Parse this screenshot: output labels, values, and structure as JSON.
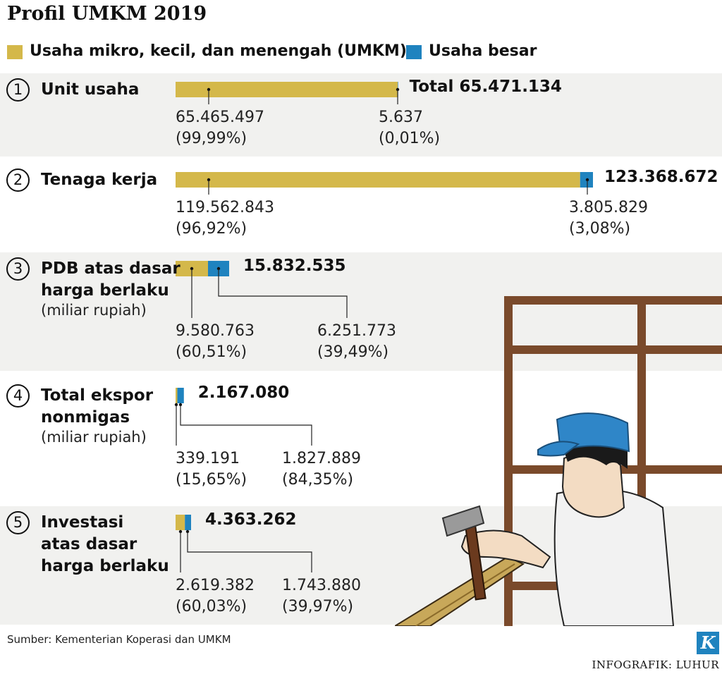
{
  "title": "Profil UMKM 2019",
  "legend": [
    {
      "label": "Usaha mikro, kecil, dan menengah (UMKM)",
      "color": "#d4b84a"
    },
    {
      "label": "Usaha besar",
      "color": "#1f83bf"
    }
  ],
  "chart_data": {
    "type": "bar",
    "orientation": "horizontal-stacked",
    "series": [
      {
        "name": "Usaha mikro, kecil, dan menengah (UMKM)",
        "color": "#d4b84a"
      },
      {
        "name": "Usaha besar",
        "color": "#1f83bf"
      }
    ],
    "rows": [
      {
        "num": "1",
        "label": [
          "Unit usaha"
        ],
        "sub": [],
        "total_text": "Total 65.471.134",
        "total": 65471134,
        "values": [
          65465497,
          5637
        ],
        "value_texts": [
          "65.465.497",
          "5.637"
        ],
        "pct_texts": [
          "(99,99%)",
          "(0,01%)"
        ]
      },
      {
        "num": "2",
        "label": [
          "Tenaga kerja"
        ],
        "sub": [],
        "total_text": "123.368.672",
        "total": 123368672,
        "values": [
          119562843,
          3805829
        ],
        "value_texts": [
          "119.562.843",
          "3.805.829"
        ],
        "pct_texts": [
          "(96,92%)",
          "(3,08%)"
        ]
      },
      {
        "num": "3",
        "label": [
          "PDB atas dasar",
          "harga berlaku"
        ],
        "sub": [
          "(miliar rupiah)"
        ],
        "total_text": "15.832.535",
        "total": 15832535,
        "values": [
          9580763,
          6251773
        ],
        "value_texts": [
          "9.580.763",
          "6.251.773"
        ],
        "pct_texts": [
          "(60,51%)",
          "(39,49%)"
        ]
      },
      {
        "num": "4",
        "label": [
          "Total ekspor",
          "nonmigas"
        ],
        "sub": [
          "(miliar rupiah)"
        ],
        "total_text": "2.167.080",
        "total": 2167080,
        "values": [
          339191,
          1827889
        ],
        "value_texts": [
          "339.191",
          "1.827.889"
        ],
        "pct_texts": [
          "(15,65%)",
          "(84,35%)"
        ]
      },
      {
        "num": "5",
        "label": [
          "Investasi",
          "atas dasar",
          "harga berlaku"
        ],
        "sub": [],
        "total_text": "4.363.262",
        "total": 4363262,
        "values": [
          2619382,
          1743880
        ],
        "value_texts": [
          "2.619.382",
          "1.743.880"
        ],
        "pct_texts": [
          "(60,03%)",
          "(39,97%)"
        ]
      }
    ]
  },
  "source": "Sumber: Kementerian Koperasi dan UMKM",
  "credit": "INFOGRAFIK: LUHUR",
  "logo_letter": "K"
}
